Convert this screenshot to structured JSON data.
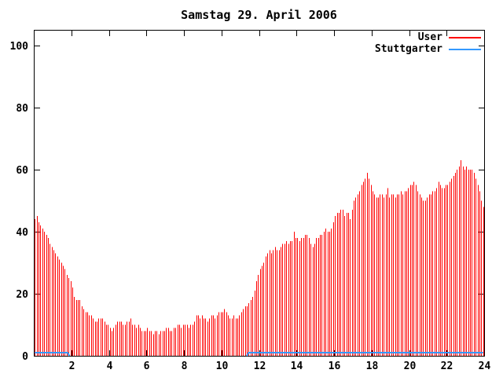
{
  "title": "Samstag 29. April 2006",
  "legend": {
    "items": [
      {
        "label": "User",
        "color": "#ff0000"
      },
      {
        "label": "Stuttgarter",
        "color": "#3399ff"
      }
    ]
  },
  "colors": {
    "background": "#ffffff",
    "axis": "#000000",
    "text": "#000000",
    "user_series": "#ff0000",
    "stuttgarter_series": "#3399ff"
  },
  "chart_data": {
    "type": "bar",
    "subtype": "impulses",
    "title": "Samstag 29. April 2006",
    "xlabel": "",
    "ylabel": "",
    "xlim": [
      0,
      24
    ],
    "ylim": [
      0,
      105
    ],
    "x_ticks": [
      2,
      4,
      6,
      8,
      10,
      12,
      14,
      16,
      18,
      20,
      22,
      24
    ],
    "y_ticks": [
      0,
      20,
      40,
      60,
      80,
      100
    ],
    "grid": false,
    "legend_position": "top-right-inside",
    "series": [
      {
        "name": "User",
        "style": "impulses",
        "color": "#ff0000",
        "x_start": 0.05,
        "x_step": 0.1,
        "values": [
          44,
          45,
          43,
          42,
          41,
          40,
          39,
          38,
          36,
          35,
          34,
          33,
          32,
          31,
          30,
          29,
          28,
          26,
          25,
          24,
          22,
          19,
          18,
          18,
          18,
          16,
          15,
          14,
          14,
          13,
          13,
          12,
          11,
          11,
          12,
          12,
          12,
          11,
          10,
          10,
          9,
          8,
          9,
          10,
          11,
          11,
          11,
          10,
          10,
          11,
          11,
          12,
          10,
          10,
          9,
          10,
          9,
          8,
          8,
          8,
          9,
          8,
          8,
          7,
          8,
          8,
          7,
          8,
          8,
          8,
          9,
          9,
          8,
          8,
          9,
          9,
          10,
          10,
          9,
          10,
          10,
          10,
          9,
          10,
          10,
          11,
          13,
          13,
          12,
          13,
          12,
          12,
          11,
          12,
          13,
          13,
          12,
          13,
          14,
          14,
          14,
          15,
          14,
          13,
          12,
          12,
          13,
          12,
          12,
          13,
          14,
          15,
          16,
          16,
          17,
          18,
          19,
          21,
          24,
          26,
          28,
          29,
          30,
          32,
          33,
          34,
          33,
          34,
          35,
          34,
          34,
          35,
          36,
          36,
          37,
          36,
          37,
          37,
          40,
          38,
          38,
          37,
          38,
          38,
          39,
          39,
          38,
          36,
          35,
          36,
          38,
          38,
          39,
          39,
          40,
          41,
          40,
          40,
          41,
          43,
          45,
          46,
          46,
          47,
          47,
          45,
          46,
          46,
          44,
          47,
          50,
          51,
          52,
          53,
          55,
          56,
          57,
          59,
          57,
          55,
          53,
          52,
          51,
          51,
          52,
          52,
          51,
          52,
          54,
          51,
          52,
          52,
          51,
          52,
          52,
          53,
          52,
          53,
          53,
          54,
          55,
          55,
          56,
          55,
          53,
          52,
          51,
          50,
          50,
          51,
          52,
          52,
          53,
          53,
          54,
          56,
          55,
          54,
          54,
          55,
          55,
          56,
          57,
          58,
          59,
          60,
          61,
          63,
          61,
          60,
          61,
          60,
          60,
          60,
          59,
          57,
          55,
          53,
          50,
          48
        ]
      },
      {
        "name": "Stuttgarter",
        "style": "line",
        "color": "#3399ff",
        "segments": [
          [
            [
              0.05,
              1
            ],
            [
              1.8,
              1
            ],
            [
              1.9,
              0
            ]
          ],
          [
            [
              11.35,
              0
            ],
            [
              11.45,
              1
            ],
            [
              23.95,
              1
            ]
          ]
        ]
      }
    ]
  }
}
